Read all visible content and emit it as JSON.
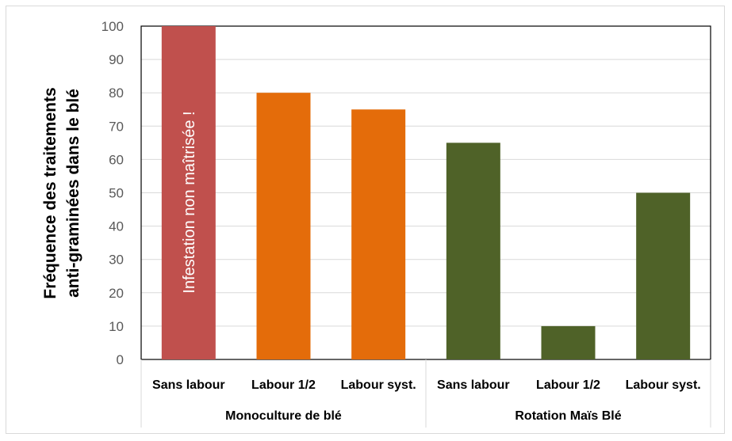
{
  "chart_data": {
    "type": "bar",
    "title": "",
    "ylabel": [
      "Fréquence des traitements",
      "anti-graminées dans le blé"
    ],
    "xlabel": "",
    "ylim": [
      0,
      100
    ],
    "yticks": [
      0,
      10,
      20,
      30,
      40,
      50,
      60,
      70,
      80,
      90,
      100
    ],
    "grid": true,
    "groups": [
      {
        "label": "Monoculture de blé",
        "start": 0,
        "count": 3
      },
      {
        "label": "Rotation Maïs Blé",
        "start": 3,
        "count": 3
      }
    ],
    "categories": [
      "Sans labour",
      "Labour 1/2",
      "Labour syst.",
      "Sans labour",
      "Labour 1/2",
      "Labour syst."
    ],
    "values": [
      100,
      80,
      75,
      65,
      10,
      50
    ],
    "colors": [
      "#c0504d",
      "#e46c0a",
      "#e46c0a",
      "#4f6228",
      "#4f6228",
      "#4f6228"
    ],
    "annotations": [
      {
        "bar": 0,
        "text": "Infestation non maîtrisée !"
      }
    ]
  }
}
